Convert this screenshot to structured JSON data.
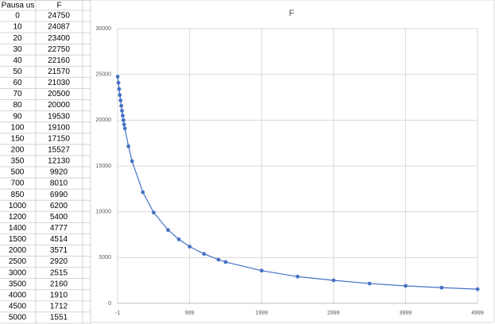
{
  "table": {
    "columns": [
      "Pausa us",
      "F"
    ]
  },
  "chart_data": {
    "type": "scatter",
    "title": "F",
    "x": [
      0,
      10,
      20,
      30,
      40,
      50,
      60,
      70,
      80,
      90,
      100,
      150,
      200,
      350,
      500,
      700,
      850,
      1000,
      1200,
      1400,
      1500,
      2000,
      2500,
      3000,
      3500,
      4000,
      4500,
      5000
    ],
    "series": [
      {
        "name": "F",
        "color": "#4472c4",
        "values": [
          24750,
          24087,
          23400,
          22750,
          22160,
          21570,
          21030,
          20500,
          20000,
          19530,
          19100,
          17150,
          15527,
          12130,
          9920,
          8010,
          6990,
          6200,
          5400,
          4777,
          4514,
          3571,
          2920,
          2515,
          2160,
          1910,
          1712,
          1551
        ]
      }
    ],
    "xlim": [
      -1,
      4999
    ],
    "xticks": [
      -1,
      999,
      1999,
      2999,
      3999,
      4999
    ],
    "ylim": [
      0,
      30000
    ],
    "yticks": [
      0,
      5000,
      10000,
      15000,
      20000,
      25000,
      30000
    ],
    "grid": true,
    "line": true
  }
}
